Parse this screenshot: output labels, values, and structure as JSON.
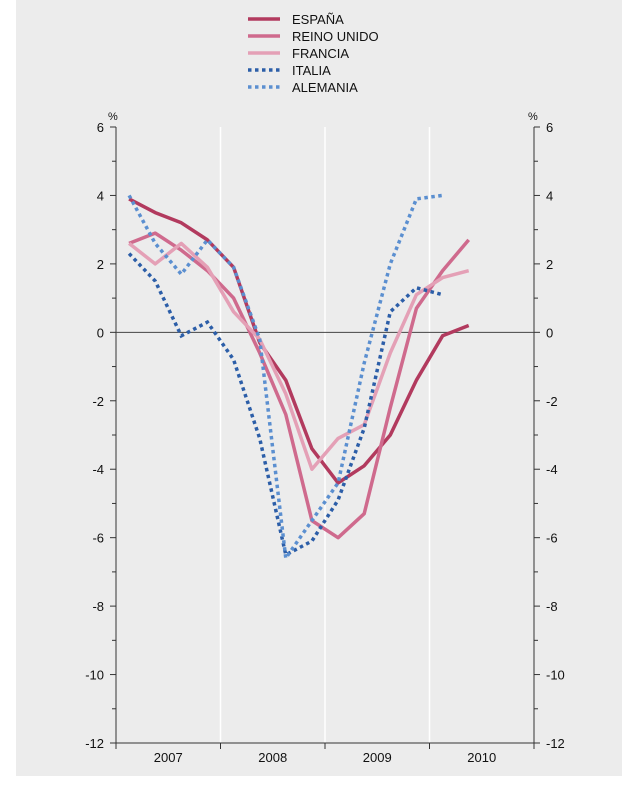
{
  "chart_data": {
    "type": "line",
    "x": [
      "2007-Q1",
      "2007-Q2",
      "2007-Q3",
      "2007-Q4",
      "2008-Q1",
      "2008-Q2",
      "2008-Q3",
      "2008-Q4",
      "2009-Q1",
      "2009-Q2",
      "2009-Q3",
      "2009-Q4",
      "2010-Q1",
      "2010-Q2",
      "2010-Q3",
      "2010-Q4"
    ],
    "year_labels": [
      "2007",
      "2008",
      "2009",
      "2010"
    ],
    "ylim": [
      -12,
      6
    ],
    "yticks": [
      6,
      4,
      2,
      0,
      -2,
      -4,
      -6,
      -8,
      -10,
      -12
    ],
    "ytick_labels": [
      "6",
      "4",
      "2",
      "0",
      "-2",
      "-4",
      "-6",
      "-8",
      "-10",
      "-12"
    ],
    "unit_left": "%",
    "unit_right": "%",
    "zero_line": true,
    "legend_position": "top-center",
    "series": [
      {
        "name": "ESPAÑA",
        "color": "#b23a5e",
        "style": "solid",
        "values": [
          3.9,
          3.5,
          3.2,
          2.7,
          1.9,
          -0.3,
          -1.4,
          -3.4,
          -4.4,
          -3.9,
          -3.0,
          -1.4,
          -0.1,
          0.2,
          null,
          null
        ]
      },
      {
        "name": "REINO UNIDO",
        "color": "#cf6a8d",
        "style": "solid",
        "values": [
          2.6,
          2.9,
          2.4,
          1.8,
          1.0,
          -0.6,
          -2.4,
          -5.5,
          -6.0,
          -5.3,
          -2.2,
          0.7,
          1.8,
          2.7,
          null,
          null
        ]
      },
      {
        "name": "FRANCIA",
        "color": "#e4a0b6",
        "style": "solid",
        "values": [
          2.6,
          2.0,
          2.6,
          1.9,
          0.6,
          -0.2,
          -1.8,
          -4.0,
          -3.1,
          -2.7,
          -0.6,
          1.1,
          1.6,
          1.8,
          null,
          null
        ]
      },
      {
        "name": "ITALIA",
        "color": "#2c5ea8",
        "style": "dotted",
        "values": [
          2.3,
          1.5,
          -0.1,
          0.3,
          -0.8,
          -3.1,
          -6.5,
          -6.1,
          -4.9,
          -2.8,
          0.6,
          1.3,
          1.1,
          null,
          null,
          null
        ]
      },
      {
        "name": "ALEMANIA",
        "color": "#5b8fd0",
        "style": "dotted",
        "values": [
          4.0,
          2.6,
          1.7,
          2.7,
          1.9,
          -0.2,
          -6.6,
          -5.5,
          -4.4,
          -0.9,
          2.0,
          3.9,
          4.0,
          null,
          null,
          null
        ]
      }
    ]
  }
}
